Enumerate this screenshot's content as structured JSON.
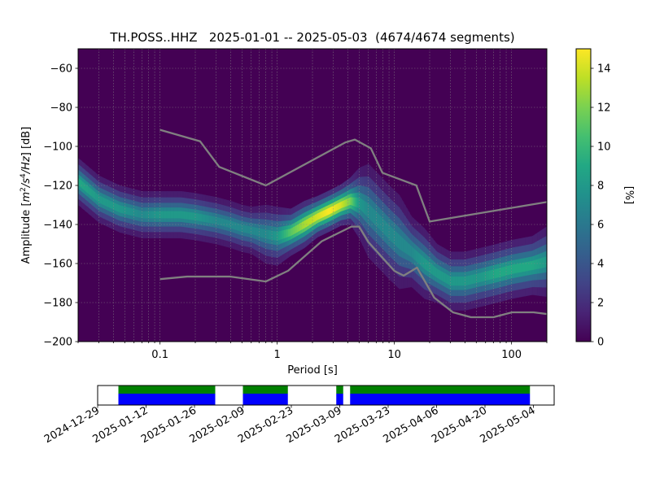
{
  "chart_data": [
    {
      "type": "heatmap",
      "title": "TH.POSS..HHZ   2025-01-01 -- 2025-05-03  (4674/4674 segments)",
      "xlabel": "Period [s]",
      "ylabel": "Amplitude [$m^2/s^4/Hz$] [dB]",
      "ylabel_parts": {
        "prefix": "Amplitude [",
        "m": "m",
        "e2": "2",
        "s": "/s",
        "e4": "4",
        "hz": "/Hz",
        "suffix": "] [dB]"
      },
      "x_scale": "log",
      "xlim": [
        0.02,
        200
      ],
      "ylim": [
        -200,
        -50
      ],
      "x_tick_values": [
        0.1,
        1,
        10,
        100
      ],
      "x_tick_labels": [
        "0.1",
        "1",
        "10",
        "100"
      ],
      "y_tick_values": [
        -60,
        -80,
        -100,
        -120,
        -140,
        -160,
        -180,
        -200
      ],
      "y_tick_labels": [
        "−60",
        "−80",
        "−100",
        "−120",
        "−140",
        "−160",
        "−180",
        "−200"
      ],
      "grid": true,
      "colorbar": {
        "label": "[%]",
        "range": [
          0,
          15
        ],
        "tick_values": [
          0,
          2,
          4,
          6,
          8,
          10,
          12,
          14
        ],
        "tick_labels": [
          "0",
          "2",
          "4",
          "6",
          "8",
          "10",
          "12",
          "14"
        ],
        "colormap": "viridis"
      },
      "series": [
        {
          "role": "ridge",
          "x": [
            0.02,
            0.03,
            0.045,
            0.07,
            0.1,
            0.15,
            0.2,
            0.3,
            0.4,
            0.5,
            0.6,
            0.8,
            1.0,
            1.3,
            1.7,
            2.2,
            2.8,
            3.5,
            4.2,
            5.0,
            6.0,
            7.5,
            9.0,
            11,
            14,
            18,
            23,
            30,
            40,
            55,
            75,
            100,
            150,
            200
          ],
          "y": [
            -118,
            -127,
            -132,
            -135,
            -135,
            -135,
            -136,
            -138,
            -140,
            -142,
            -143,
            -145,
            -146,
            -144,
            -140,
            -136,
            -133,
            -130,
            -128,
            -129,
            -133,
            -139,
            -144,
            -149,
            -154,
            -160,
            -165,
            -169,
            -169,
            -167,
            -165,
            -163,
            -161,
            -159
          ],
          "width": [
            4,
            4,
            4,
            4,
            4,
            4,
            4,
            4,
            4,
            4,
            4,
            5,
            5,
            4,
            4,
            3.5,
            3.5,
            3.5,
            4,
            6,
            8,
            8,
            8,
            8,
            6,
            6,
            5,
            5,
            5,
            5,
            5,
            5,
            5,
            6
          ],
          "percent": [
            9,
            8,
            8,
            7,
            8,
            8,
            8,
            7,
            7,
            7,
            7,
            7,
            8,
            11,
            13,
            14,
            15,
            14,
            12,
            8,
            7,
            7,
            7,
            7,
            7,
            8,
            8,
            8,
            8,
            8,
            9,
            9,
            9,
            8
          ]
        },
        {
          "role": "high-noise-model",
          "x": [
            0.1,
            0.22,
            0.32,
            0.8,
            3.8,
            4.6,
            6.3,
            7.9,
            15.4,
            20,
            354
          ],
          "y": [
            -91.5,
            -97.4,
            -110.5,
            -120,
            -98,
            -96.5,
            -101,
            -113.5,
            -120,
            -138.5,
            -126
          ]
        },
        {
          "role": "low-noise-model",
          "x": [
            0.1,
            0.17,
            0.4,
            0.8,
            1.24,
            2.4,
            4.3,
            5,
            6,
            10,
            12,
            15.6,
            21.9,
            31.6,
            45,
            70,
            101,
            154,
            328
          ],
          "y": [
            -168,
            -166.7,
            -166.7,
            -169.2,
            -163.7,
            -148.6,
            -141.1,
            -141.1,
            -149,
            -163.8,
            -166.2,
            -162.1,
            -177.5,
            -185,
            -187.5,
            -187.5,
            -185,
            -185,
            -187.5
          ]
        }
      ]
    },
    {
      "type": "timeline",
      "x_tick_labels": [
        "2024-12-29",
        "2025-01-12",
        "2025-01-26",
        "2025-02-09",
        "2025-02-23",
        "2025-03-09",
        "2025-03-23",
        "2025-04-06",
        "2025-04-20",
        "2025-05-04"
      ],
      "x_tick_dates": [
        "2024-12-29",
        "2025-01-12",
        "2025-01-26",
        "2025-02-09",
        "2025-02-23",
        "2025-03-09",
        "2025-03-23",
        "2025-04-06",
        "2025-04-20",
        "2025-05-04"
      ],
      "xlim": [
        "2024-12-29",
        "2025-05-10"
      ],
      "data_segments": [
        [
          "2025-01-04",
          "2025-02-01"
        ],
        [
          "2025-02-09",
          "2025-02-22"
        ],
        [
          "2025-03-08",
          "2025-03-10"
        ],
        [
          "2025-03-12",
          "2025-05-03"
        ]
      ],
      "used_segments": [
        [
          "2025-01-04",
          "2025-02-01"
        ],
        [
          "2025-02-09",
          "2025-02-22"
        ],
        [
          "2025-03-08",
          "2025-03-10"
        ],
        [
          "2025-03-12",
          "2025-05-03"
        ]
      ],
      "colors": {
        "used": "#008000",
        "data": "#0000ff"
      }
    }
  ]
}
